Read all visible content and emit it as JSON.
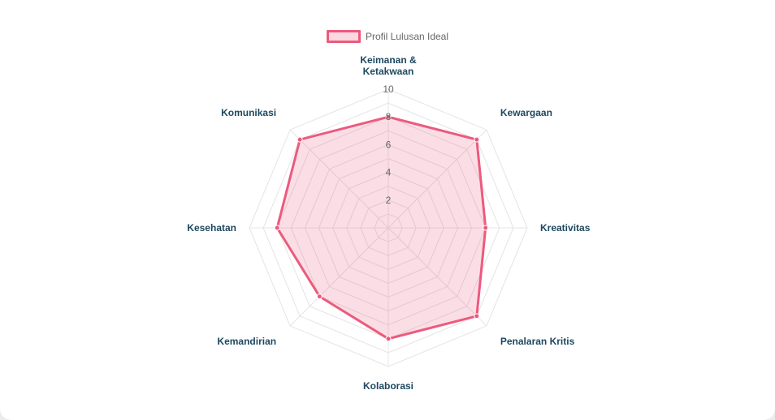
{
  "chart_data": {
    "type": "radar",
    "labels": [
      [
        "Keimanan &",
        "Ketakwaan"
      ],
      [
        "Kewargaan"
      ],
      [
        "Kreativitas"
      ],
      [
        "Penalaran Kritis"
      ],
      [
        "Kolaborasi"
      ],
      [
        "Kemandirian"
      ],
      [
        "Kesehatan"
      ],
      [
        "Komunikasi"
      ]
    ],
    "series": [
      {
        "name": "Profil Lulusan Ideal",
        "values": [
          8,
          9,
          7,
          9,
          8,
          7,
          8,
          9
        ],
        "color": "#ec5a7d",
        "fill": "rgba(236, 90, 125, 0.2)"
      }
    ],
    "ticks": [
      "2",
      "4",
      "6",
      "8",
      "10"
    ],
    "rlim": [
      0,
      10
    ],
    "legend": "top-center",
    "grid": true
  }
}
